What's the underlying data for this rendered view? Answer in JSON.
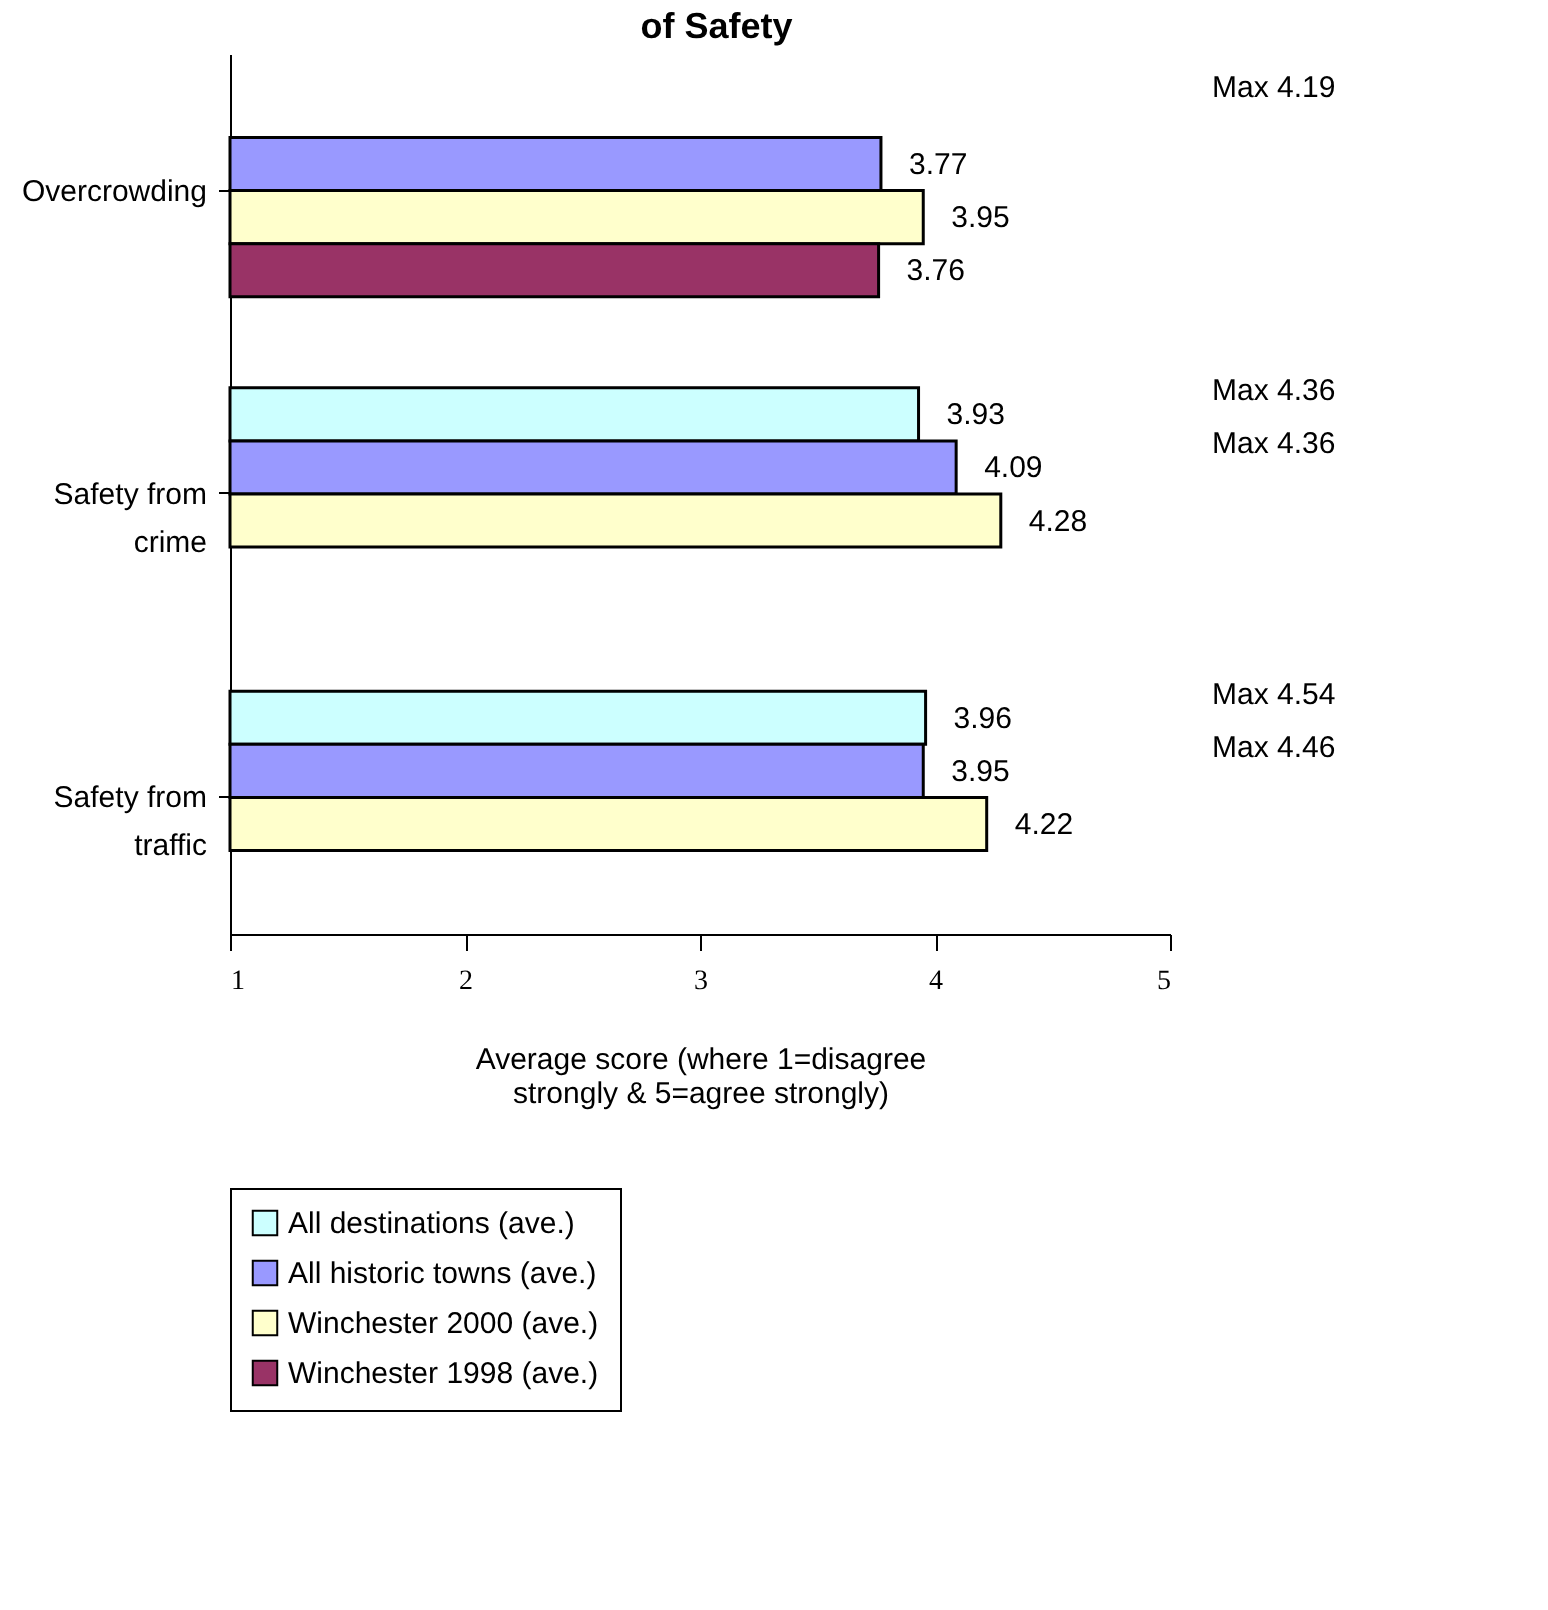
{
  "chart_data": {
    "type": "bar",
    "orientation": "horizontal",
    "title": "of Safety",
    "xlabel": "Average score (where 1=disagree strongly & 5=agree strongly)",
    "categories": [
      "Overcrowding",
      "Safety from crime",
      "Safety from traffic"
    ],
    "series": [
      {
        "name": "All destinations (ave.)",
        "color": "#ccffff",
        "values": [
          null,
          3.93,
          3.96
        ]
      },
      {
        "name": "All historic towns (ave.)",
        "color": "#9999ff",
        "values": [
          3.77,
          4.09,
          3.95
        ]
      },
      {
        "name": "Winchester 2000 (ave.)",
        "color": "#ffffcc",
        "values": [
          3.95,
          4.28,
          4.22
        ]
      },
      {
        "name": "Winchester 1998 (ave.)",
        "color": "#993366",
        "values": [
          3.76,
          null,
          null
        ]
      }
    ],
    "xlim": [
      1,
      5
    ],
    "xticks": [
      1,
      2,
      3,
      4,
      5
    ],
    "data_labels": true,
    "legend": "bottom",
    "grid": false,
    "annotations": [
      "Max 4.19",
      "Max 4.36",
      "Max 4.36",
      "Max 4.54",
      "Max 4.46"
    ]
  }
}
